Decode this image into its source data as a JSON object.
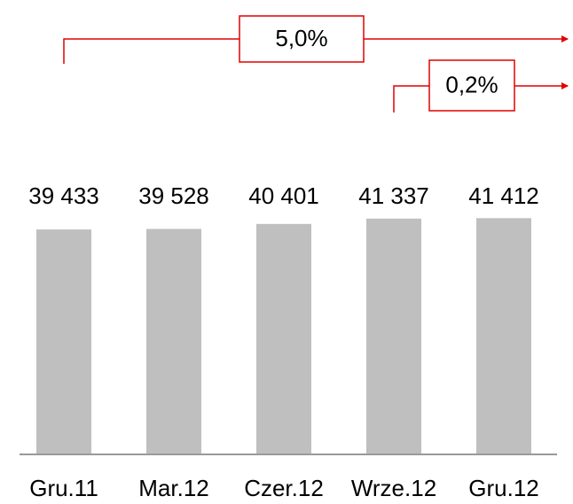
{
  "chart_data": {
    "type": "bar",
    "categories": [
      "Gru.11",
      "Mar.12",
      "Czer.12",
      "Wrze.12",
      "Gru.12"
    ],
    "values": [
      39433,
      39528,
      40401,
      41337,
      41412
    ],
    "value_labels": [
      "39 433",
      "39 528",
      "40 401",
      "41 337",
      "41 412"
    ],
    "color": "#bfbfbf",
    "ylim": [
      0,
      50000
    ],
    "annotations": [
      "5,0%",
      "0,2%"
    ],
    "annotation_color": "#e00000"
  }
}
